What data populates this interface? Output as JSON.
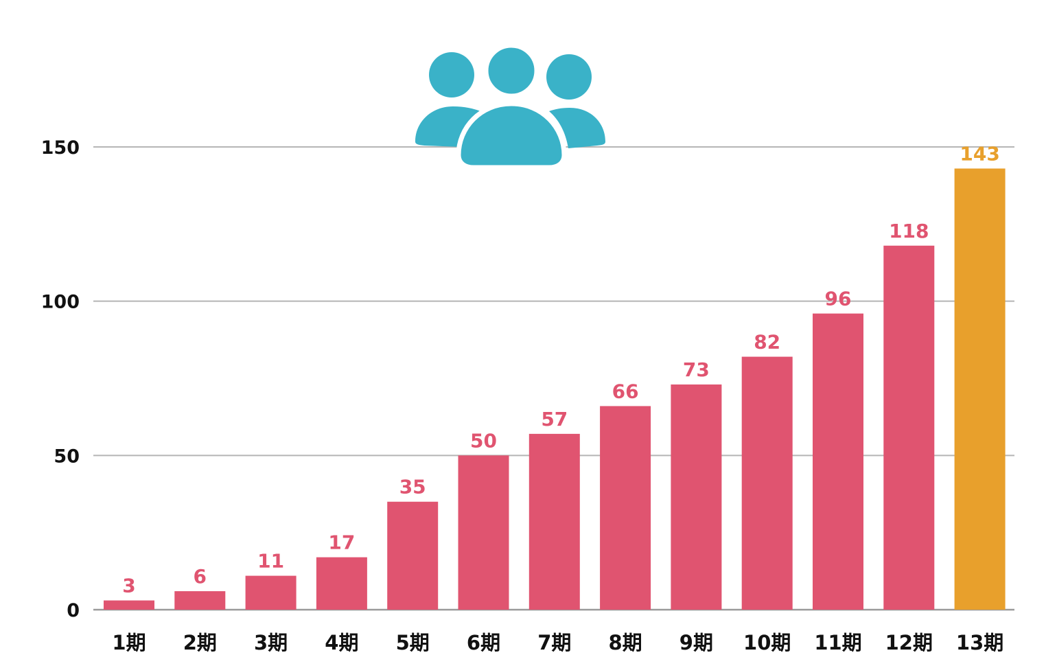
{
  "chart_data": {
    "type": "bar",
    "categories": [
      "1期",
      "2期",
      "3期",
      "4期",
      "5期",
      "6期",
      "7期",
      "8期",
      "9期",
      "10期",
      "11期",
      "12期",
      "13期"
    ],
    "values": [
      3,
      6,
      11,
      17,
      35,
      50,
      57,
      66,
      73,
      82,
      96,
      118,
      143
    ],
    "ylim": [
      0,
      150
    ],
    "yticks": [
      0,
      50,
      100,
      150
    ],
    "grid": true,
    "legend": "none",
    "colors": {
      "bar": "#e05470",
      "highlight": "#e8a02c",
      "label": "#e05470",
      "highlight_label": "#e8a02c",
      "icon": "#3ab2c8"
    },
    "highlight_index": 12
  },
  "icon": {
    "name": "people-group-icon"
  }
}
